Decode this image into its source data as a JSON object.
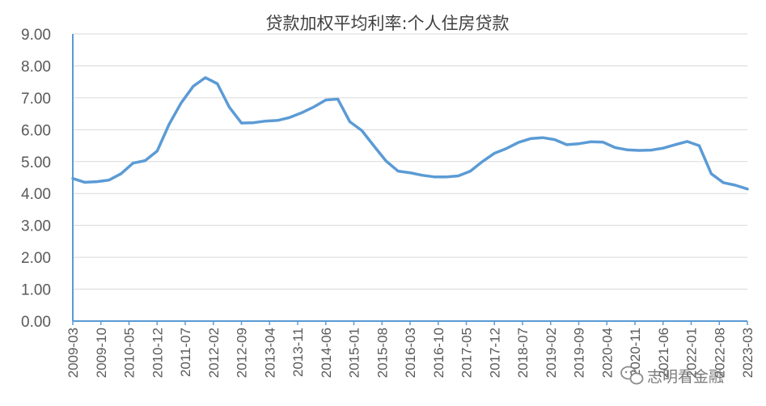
{
  "chart_data": {
    "type": "line",
    "title": "贷款加权平均利率:个人住房贷款",
    "xlabel": "",
    "ylabel": "",
    "ylim": [
      0,
      9
    ],
    "yticks": [
      "0.00",
      "1.00",
      "2.00",
      "3.00",
      "4.00",
      "5.00",
      "6.00",
      "7.00",
      "8.00",
      "9.00"
    ],
    "xticks": [
      "2009-03",
      "2009-10",
      "2010-05",
      "2010-12",
      "2011-07",
      "2012-02",
      "2012-09",
      "2013-04",
      "2013-11",
      "2014-06",
      "2015-01",
      "2015-08",
      "2016-03",
      "2016-10",
      "2017-05",
      "2017-12",
      "2018-07",
      "2019-02",
      "2019-09",
      "2020-04",
      "2020-11",
      "2021-06",
      "2022-01",
      "2022-08",
      "2023-03"
    ],
    "grid": true,
    "color": "#5b9bd5",
    "series": [
      {
        "x": [
          "2009-03",
          "2009-06",
          "2009-09",
          "2009-12",
          "2010-03",
          "2010-06",
          "2010-09",
          "2010-12",
          "2011-03",
          "2011-06",
          "2011-09",
          "2011-12",
          "2012-03",
          "2012-06",
          "2012-09",
          "2012-12",
          "2013-03",
          "2013-06",
          "2013-09",
          "2013-12",
          "2014-03",
          "2014-06",
          "2014-09",
          "2014-12",
          "2015-03",
          "2015-06",
          "2015-09",
          "2015-12",
          "2016-03",
          "2016-06",
          "2016-09",
          "2016-12",
          "2017-03",
          "2017-06",
          "2017-09",
          "2017-12",
          "2018-03",
          "2018-06",
          "2018-09",
          "2018-12",
          "2019-03",
          "2019-06",
          "2019-09",
          "2019-12",
          "2020-03",
          "2020-06",
          "2020-09",
          "2020-12",
          "2021-03",
          "2021-06",
          "2021-09",
          "2021-12",
          "2022-03",
          "2022-06",
          "2022-09",
          "2022-12",
          "2023-03"
        ],
        "values": [
          4.47,
          4.35,
          4.37,
          4.42,
          4.62,
          4.95,
          5.03,
          5.33,
          6.17,
          6.84,
          7.36,
          7.63,
          7.44,
          6.7,
          6.21,
          6.22,
          6.27,
          6.29,
          6.38,
          6.53,
          6.71,
          6.93,
          6.96,
          6.25,
          5.97,
          5.49,
          5.02,
          4.7,
          4.65,
          4.57,
          4.52,
          4.52,
          4.55,
          4.7,
          5.0,
          5.26,
          5.41,
          5.6,
          5.72,
          5.75,
          5.69,
          5.53,
          5.56,
          5.62,
          5.61,
          5.44,
          5.37,
          5.35,
          5.36,
          5.42,
          5.53,
          5.63,
          5.5,
          4.62,
          4.34,
          4.26,
          4.14
        ]
      }
    ]
  },
  "watermark": {
    "text": "志明看金融",
    "icon": "wechat-icon"
  }
}
